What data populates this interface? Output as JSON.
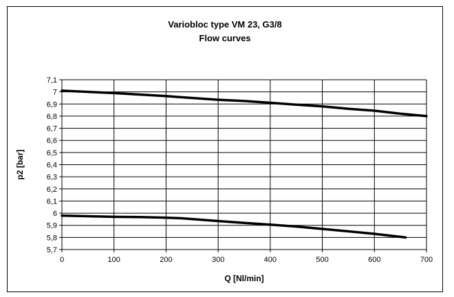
{
  "chart_data": {
    "type": "line",
    "title": [
      "Variobloc type VM 23, G3/8",
      "Flow curves"
    ],
    "xlabel": "Q [Nl/min]",
    "ylabel": "p2 [bar]",
    "xlim": [
      0,
      700
    ],
    "ylim": [
      5.7,
      7.1
    ],
    "x_ticks": [
      0,
      100,
      200,
      300,
      400,
      500,
      600,
      700
    ],
    "x_tick_labels": [
      "0",
      "100",
      "200",
      "300",
      "400",
      "500",
      "600",
      "700"
    ],
    "y_ticks": [
      5.7,
      5.8,
      5.9,
      6.0,
      6.1,
      6.2,
      6.3,
      6.4,
      6.5,
      6.6,
      6.7,
      6.8,
      6.9,
      7.0,
      7.1
    ],
    "y_tick_labels": [
      "5,7",
      "5,8",
      "5,9",
      "6",
      "6,1",
      "6,2",
      "6,3",
      "6,4",
      "6,5",
      "6,6",
      "6,7",
      "6,8",
      "6,9",
      "7",
      "7,1"
    ],
    "grid": true,
    "legend": "none",
    "line_color": "#000000",
    "series": [
      {
        "x": [
          0,
          100,
          200,
          250,
          300,
          350,
          400,
          450,
          500,
          550,
          600,
          650,
          700
        ],
        "y": [
          7.01,
          6.99,
          6.965,
          6.95,
          6.935,
          6.925,
          6.91,
          6.895,
          6.88,
          6.86,
          6.845,
          6.82,
          6.8
        ]
      },
      {
        "x": [
          0,
          100,
          150,
          200,
          230,
          300,
          350,
          400,
          450,
          500,
          550,
          600,
          660
        ],
        "y": [
          5.98,
          5.97,
          5.968,
          5.963,
          5.958,
          5.935,
          5.92,
          5.905,
          5.89,
          5.87,
          5.85,
          5.83,
          5.8
        ]
      }
    ]
  }
}
